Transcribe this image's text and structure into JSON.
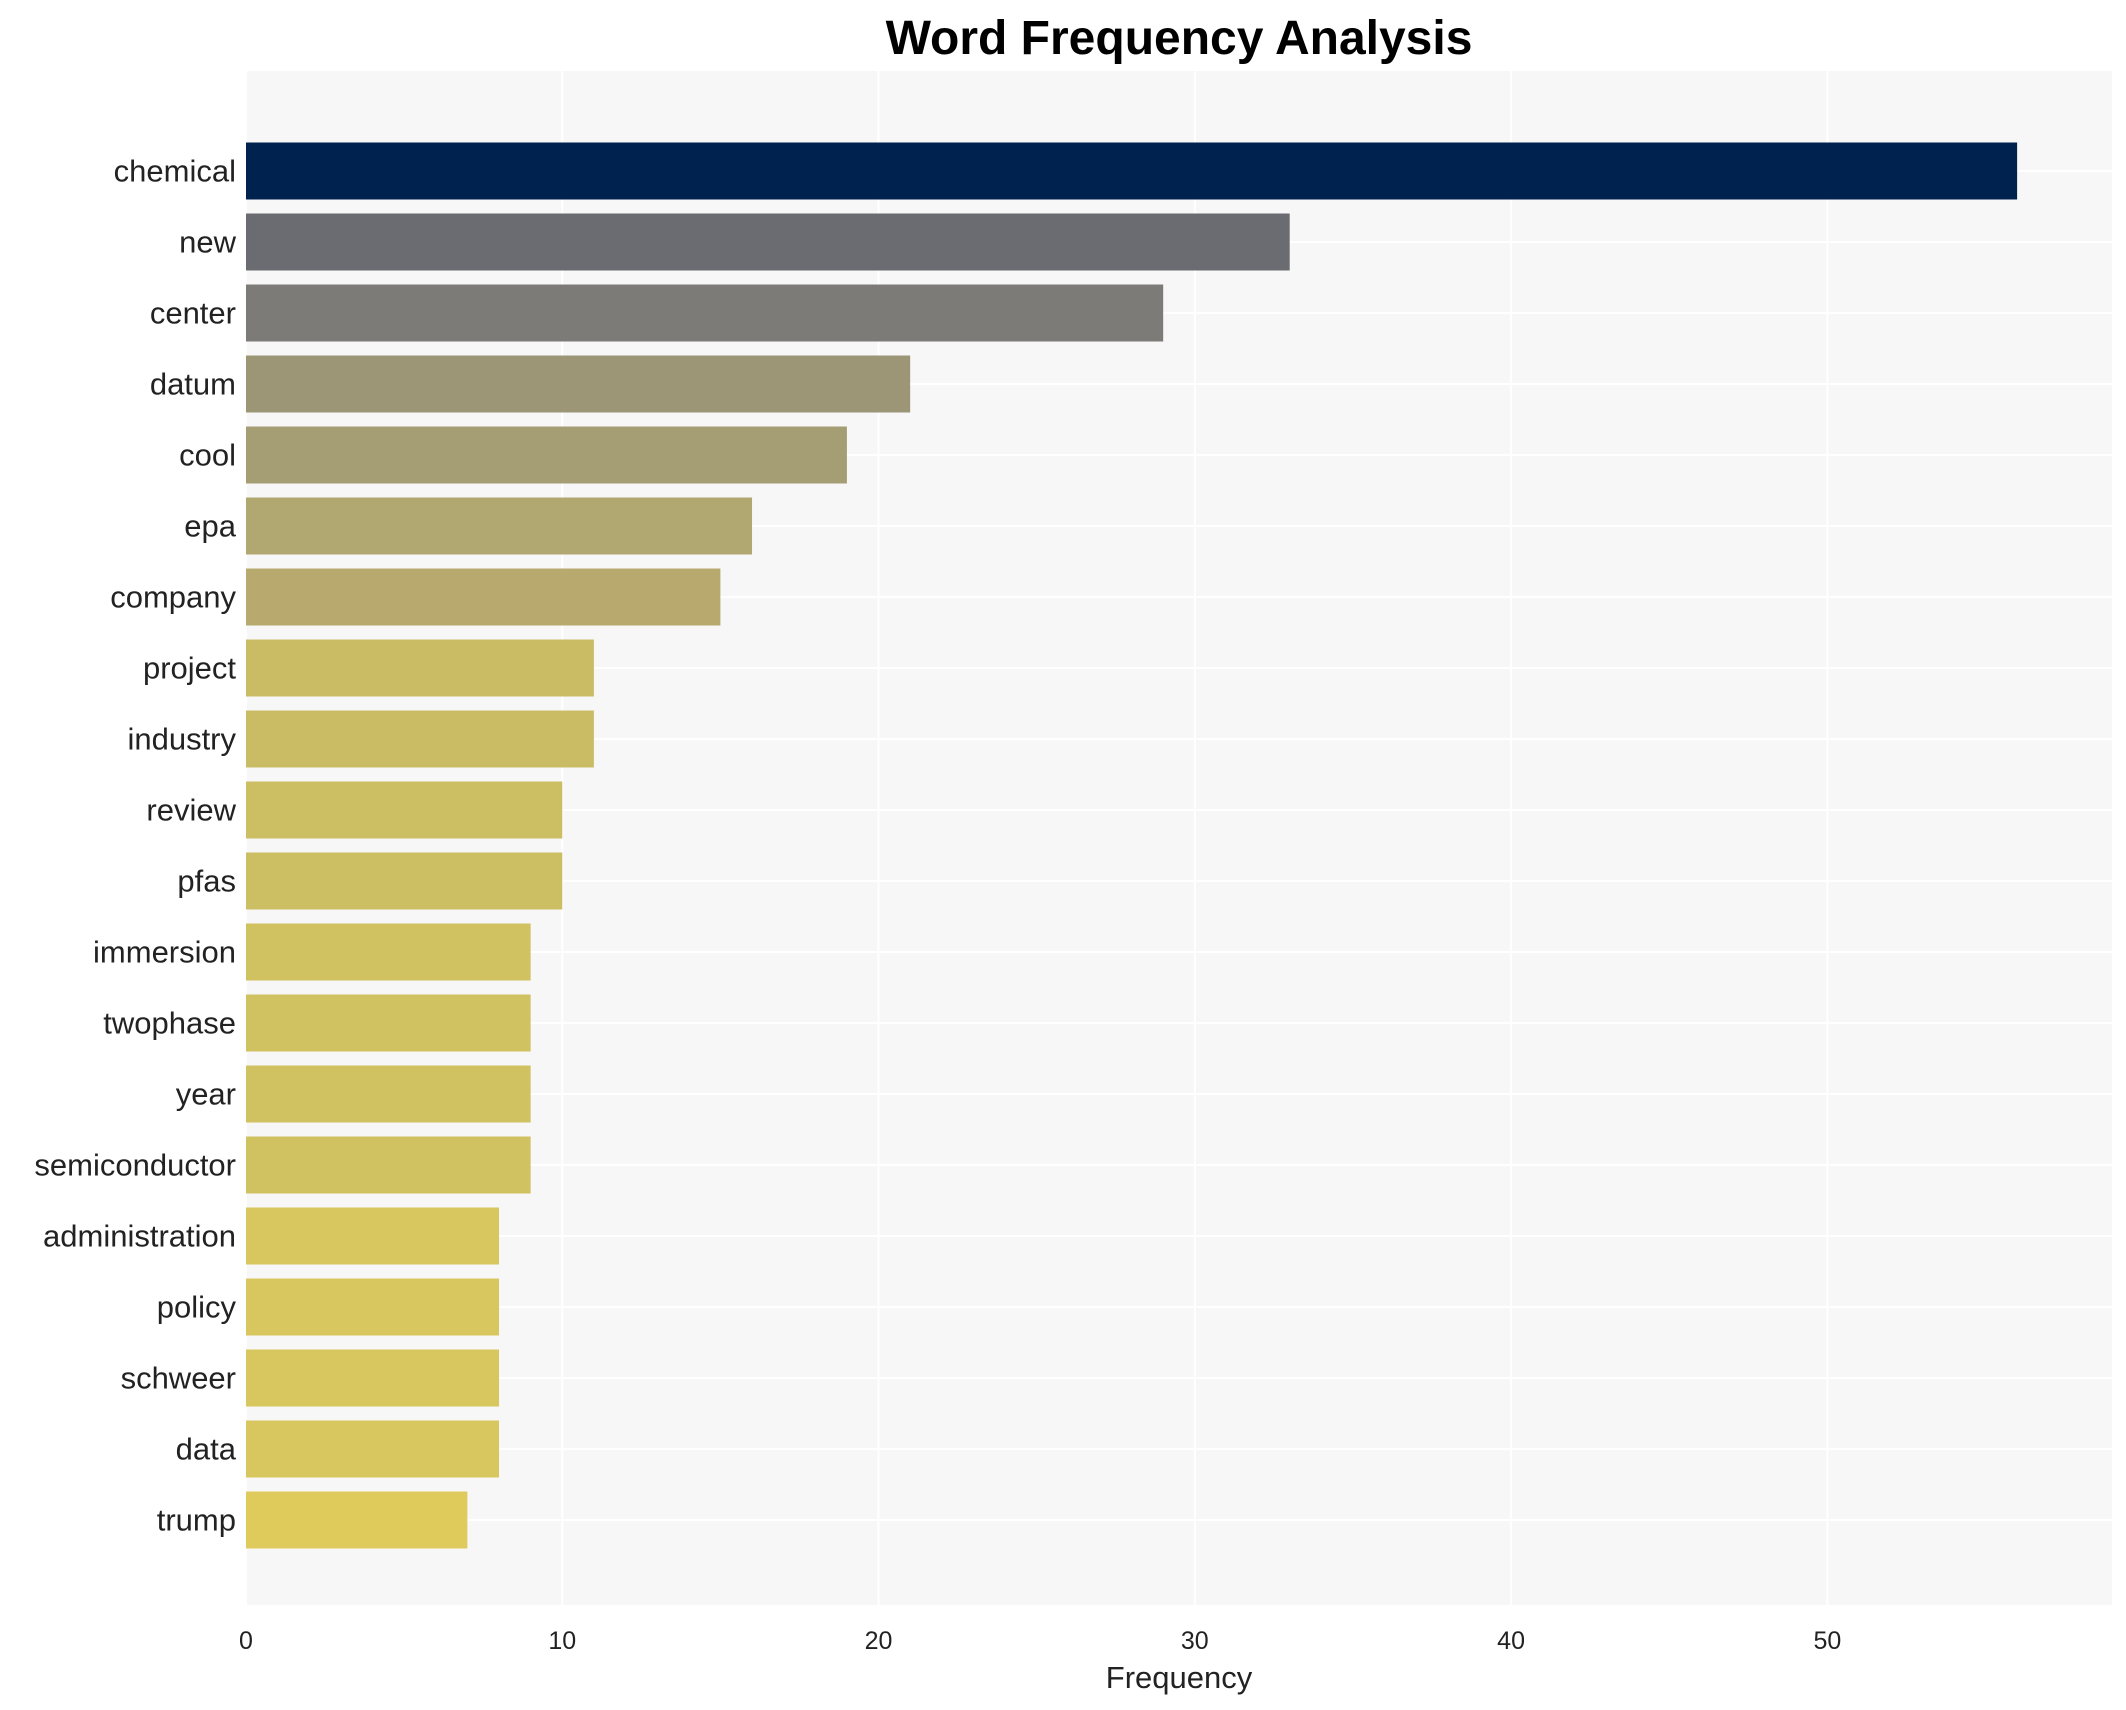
{
  "chart_data": {
    "type": "bar",
    "orientation": "horizontal",
    "title": "Word Frequency Analysis",
    "xlabel": "Frequency",
    "ylabel": "",
    "xlim": [
      0,
      59
    ],
    "x_ticks": [
      0,
      10,
      20,
      30,
      40,
      50
    ],
    "grid": true,
    "categories": [
      "chemical",
      "new",
      "center",
      "datum",
      "cool",
      "epa",
      "company",
      "project",
      "industry",
      "review",
      "pfas",
      "immersion",
      "twophase",
      "year",
      "semiconductor",
      "administration",
      "policy",
      "schweer",
      "data",
      "trump"
    ],
    "values": [
      56,
      33,
      29,
      21,
      19,
      16,
      15,
      11,
      11,
      10,
      10,
      9,
      9,
      9,
      9,
      8,
      8,
      8,
      8,
      7
    ],
    "colors": [
      "#00224e",
      "#6b6c71",
      "#7c7b78",
      "#9c9677",
      "#a59e74",
      "#b1a770",
      "#b8aa6e",
      "#c9bc65",
      "#c9bc65",
      "#ccbe63",
      "#ccbe63",
      "#d1c261",
      "#d1c261",
      "#d1c261",
      "#d1c261",
      "#d8c65e",
      "#d8c65e",
      "#d8c65e",
      "#d8c65e",
      "#dfcb5b"
    ]
  }
}
